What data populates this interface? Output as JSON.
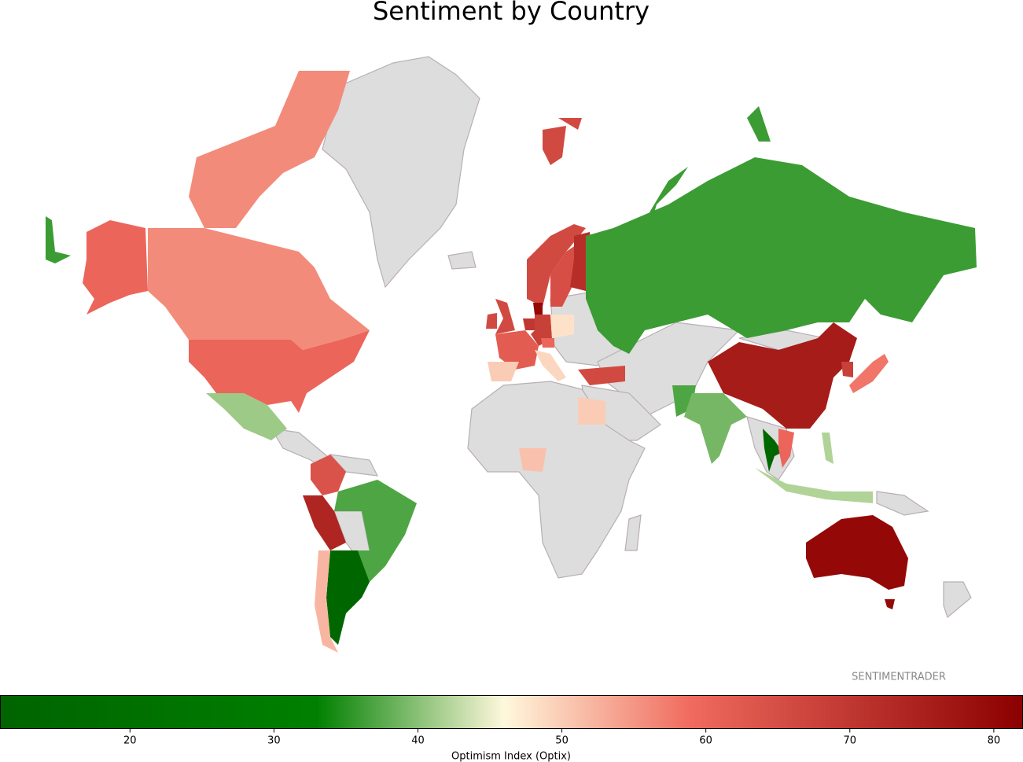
{
  "chart_data": {
    "type": "choropleth",
    "title": "Sentiment by Country",
    "values": [
      56,
      60,
      41,
      64,
      74,
      37,
      13,
      52,
      66,
      65,
      72,
      66,
      66,
      80,
      70,
      68,
      48,
      62,
      50,
      49,
      60,
      66,
      36,
      76,
      37,
      39,
      13,
      60,
      68,
      58,
      42,
      42,
      80,
      50,
      51
    ],
    "colorscale": [
      {
        "value": 11,
        "color": "#006400"
      },
      {
        "value": 33,
        "color": "#008000"
      },
      {
        "value": 46,
        "color": "#fff8dc"
      },
      {
        "value": 59,
        "color": "#f06a5e"
      },
      {
        "value": 82,
        "color": "#8b0000"
      }
    ],
    "clim": [
      11,
      82
    ],
    "cticks": [
      20,
      30,
      40,
      50,
      60,
      70,
      80
    ],
    "colorbar_label": "Optimism Index (Optix)",
    "no_data_color": "#dddddd",
    "watermark": "SENTIMENTRADER"
  }
}
